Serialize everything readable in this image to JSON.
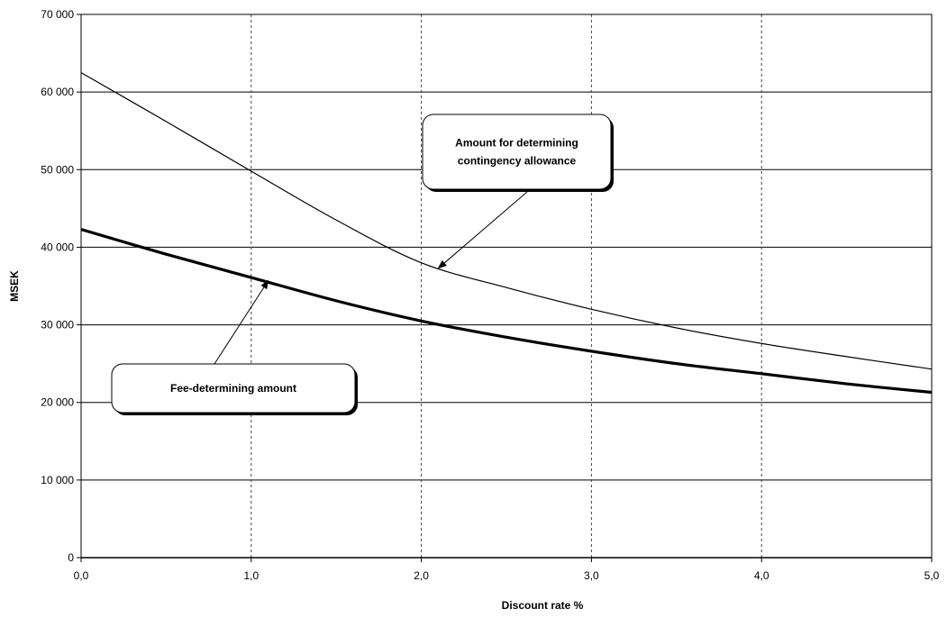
{
  "chart_data": {
    "type": "line",
    "title": "",
    "xlabel": "Discount rate %",
    "ylabel": "MSEK",
    "xlim": [
      0,
      5
    ],
    "ylim": [
      0,
      70000
    ],
    "x_ticks": [
      {
        "value": 0,
        "label": "0,0"
      },
      {
        "value": 1,
        "label": "1,0"
      },
      {
        "value": 2,
        "label": "2,0"
      },
      {
        "value": 3,
        "label": "3,0"
      },
      {
        "value": 4,
        "label": "4,0"
      },
      {
        "value": 5,
        "label": "5,0"
      }
    ],
    "y_ticks": [
      {
        "value": 0,
        "label": "0"
      },
      {
        "value": 10000,
        "label": "10 000"
      },
      {
        "value": 20000,
        "label": "20 000"
      },
      {
        "value": 30000,
        "label": "30 000"
      },
      {
        "value": 40000,
        "label": "40 000"
      },
      {
        "value": 50000,
        "label": "50 000"
      },
      {
        "value": 60000,
        "label": "60 000"
      },
      {
        "value": 70000,
        "label": "70 000"
      }
    ],
    "grid": true,
    "legend": "none",
    "series": [
      {
        "key": "contingency",
        "x": [
          0,
          0.5,
          1.0,
          1.5,
          2.0,
          2.5,
          3.0,
          3.5,
          4.0,
          4.5,
          5.0
        ],
        "y": [
          62500,
          56200,
          49800,
          43500,
          38000,
          34800,
          32000,
          29600,
          27600,
          25900,
          24300
        ],
        "color": "#000000",
        "style": "thin"
      },
      {
        "key": "fee",
        "x": [
          0,
          0.5,
          1.0,
          1.5,
          2.0,
          2.5,
          3.0,
          3.5,
          4.0,
          4.5,
          5.0
        ],
        "y": [
          42300,
          39100,
          36100,
          33100,
          30500,
          28400,
          26600,
          25000,
          23700,
          22400,
          21300
        ],
        "color": "#000000",
        "style": "thick"
      }
    ],
    "annotations": [
      {
        "key": "contingency",
        "lines": [
          "Amount for determining",
          "contingency allowance"
        ],
        "point_x": 2.1,
        "point_y": 37300
      },
      {
        "key": "fee",
        "lines": [
          "Fee-determining amount"
        ],
        "point_x": 1.1,
        "point_y": 35700
      }
    ]
  }
}
